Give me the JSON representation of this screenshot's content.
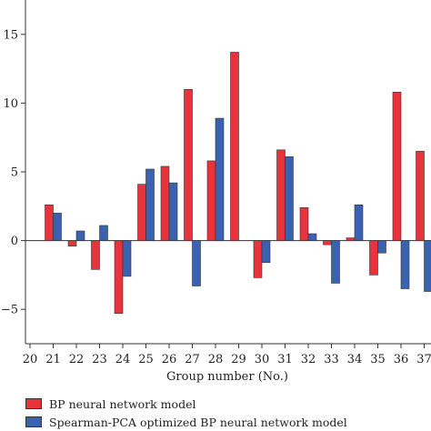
{
  "chart_data": {
    "type": "bar",
    "xlabel": "Group number (No.)",
    "ylabel": "",
    "ylim": [
      -7.5,
      17.5
    ],
    "yticks": [
      -5,
      0,
      5,
      10,
      15
    ],
    "categories": [
      "20",
      "21",
      "22",
      "23",
      "24",
      "25",
      "26",
      "27",
      "28",
      "29",
      "30",
      "31",
      "32",
      "33",
      "34",
      "35",
      "36",
      "37"
    ],
    "series": [
      {
        "name": "BP neural network model",
        "color": "#e8323c",
        "values": [
          null,
          2.6,
          -0.4,
          -2.1,
          -5.3,
          4.1,
          5.4,
          11.0,
          5.8,
          13.7,
          -2.7,
          6.6,
          2.4,
          -0.3,
          0.2,
          -2.5,
          10.8,
          6.5
        ]
      },
      {
        "name": "Spearman-PCA optimized BP neural network model",
        "color": "#3a62b0",
        "values": [
          null,
          2.0,
          0.7,
          1.1,
          -2.6,
          5.2,
          4.2,
          -3.3,
          8.9,
          null,
          -1.6,
          6.1,
          0.5,
          -3.1,
          2.6,
          -0.9,
          -3.5,
          -3.7
        ]
      }
    ],
    "grid": false,
    "legend_position": "bottom-left"
  }
}
